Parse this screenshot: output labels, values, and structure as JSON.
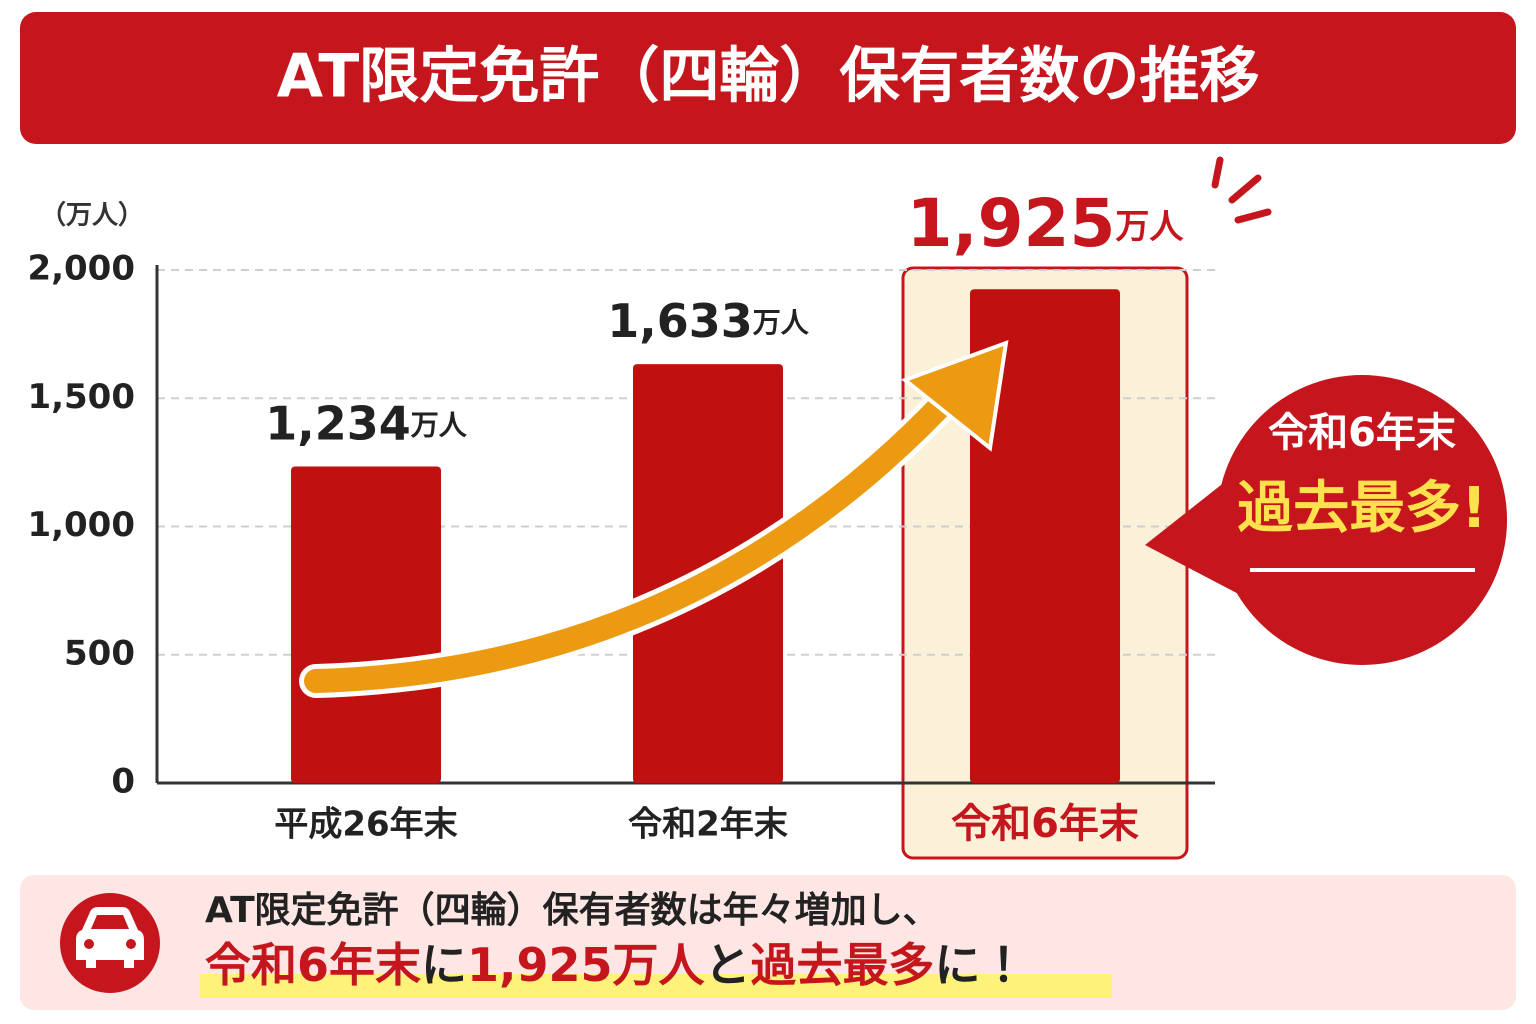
{
  "chart_data": {
    "type": "bar",
    "title": "AT限定免許（四輪）保有者数の推移",
    "y_axis_label": "（万人）",
    "categories": [
      "平成26年末",
      "令和2年末",
      "令和6年末"
    ],
    "values": [
      1234,
      1633,
      1925
    ],
    "value_labels": [
      "1,234",
      "1,633",
      "1,925"
    ],
    "value_label_unit": "万人",
    "color": "#c0100f",
    "ylim": [
      0,
      2000
    ],
    "yticks": [
      0,
      500,
      {
        "value": 1000,
        "label": "1,000"
      },
      {
        "value": 1500,
        "label": "1,500"
      },
      {
        "value": 2000,
        "label": "2,000"
      }
    ],
    "grid": true,
    "callout": {
      "line1": "令和6年末",
      "line2": "過去最多!"
    },
    "summary": {
      "line1": "AT限定免許（四輪）保有者数は年々増加し、",
      "line2": [
        "令和6年末",
        "に",
        "1,925万人",
        "と",
        "過去最多",
        "に！"
      ]
    }
  }
}
